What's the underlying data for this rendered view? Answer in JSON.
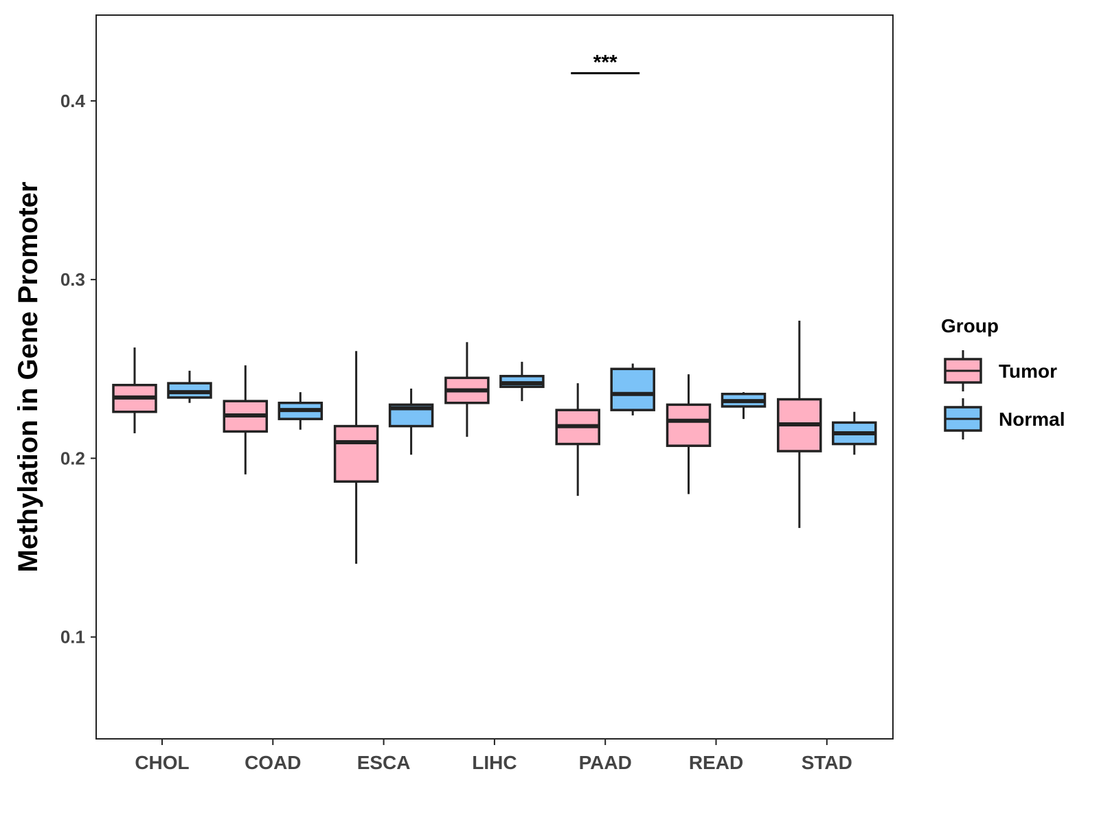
{
  "chart_data": {
    "type": "boxplot",
    "title": "",
    "xlabel": "",
    "ylabel": "Methylation in Gene Promoter",
    "ylim": [
      0.043,
      0.448
    ],
    "yticks": [
      0.1,
      0.2,
      0.3,
      0.4
    ],
    "ytick_labels": [
      "0.1",
      "0.2",
      "0.3",
      "0.4"
    ],
    "categories": [
      "CHOL",
      "COAD",
      "ESCA",
      "LIHC",
      "PAAD",
      "READ",
      "STAD"
    ],
    "legend": {
      "title": "Group",
      "position": "right",
      "entries": [
        "Tumor",
        "Normal"
      ]
    },
    "series": [
      {
        "name": "Tumor",
        "color": "#FFB0C2",
        "boxes": [
          {
            "category": "CHOL",
            "min": 0.214,
            "q1": 0.226,
            "median": 0.234,
            "q3": 0.241,
            "max": 0.262
          },
          {
            "category": "COAD",
            "min": 0.191,
            "q1": 0.215,
            "median": 0.224,
            "q3": 0.232,
            "max": 0.252
          },
          {
            "category": "ESCA",
            "min": 0.141,
            "q1": 0.187,
            "median": 0.209,
            "q3": 0.218,
            "max": 0.26
          },
          {
            "category": "LIHC",
            "min": 0.212,
            "q1": 0.231,
            "median": 0.238,
            "q3": 0.245,
            "max": 0.265
          },
          {
            "category": "PAAD",
            "min": 0.179,
            "q1": 0.208,
            "median": 0.218,
            "q3": 0.227,
            "max": 0.242
          },
          {
            "category": "READ",
            "min": 0.18,
            "q1": 0.207,
            "median": 0.221,
            "q3": 0.23,
            "max": 0.247
          },
          {
            "category": "STAD",
            "min": 0.161,
            "q1": 0.204,
            "median": 0.219,
            "q3": 0.233,
            "max": 0.277
          }
        ]
      },
      {
        "name": "Normal",
        "color": "#7BC2F7",
        "boxes": [
          {
            "category": "CHOL",
            "min": 0.231,
            "q1": 0.234,
            "median": 0.237,
            "q3": 0.242,
            "max": 0.249
          },
          {
            "category": "COAD",
            "min": 0.216,
            "q1": 0.222,
            "median": 0.227,
            "q3": 0.231,
            "max": 0.237
          },
          {
            "category": "ESCA",
            "min": 0.202,
            "q1": 0.218,
            "median": 0.228,
            "q3": 0.23,
            "max": 0.239
          },
          {
            "category": "LIHC",
            "min": 0.232,
            "q1": 0.24,
            "median": 0.242,
            "q3": 0.246,
            "max": 0.254
          },
          {
            "category": "PAAD",
            "min": 0.224,
            "q1": 0.227,
            "median": 0.236,
            "q3": 0.25,
            "max": 0.253
          },
          {
            "category": "READ",
            "min": 0.222,
            "q1": 0.229,
            "median": 0.232,
            "q3": 0.236,
            "max": 0.237
          },
          {
            "category": "STAD",
            "min": 0.202,
            "q1": 0.208,
            "median": 0.214,
            "q3": 0.22,
            "max": 0.226
          }
        ]
      }
    ],
    "annotations": [
      {
        "category": "PAAD",
        "text": "***",
        "y": 0.4155
      }
    ]
  }
}
